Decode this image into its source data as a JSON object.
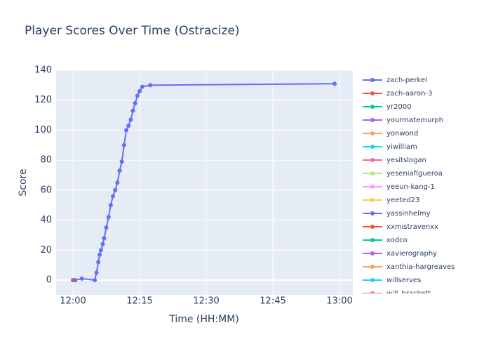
{
  "chart_data": {
    "type": "line",
    "title": "Player Scores Over Time (Ostracize)",
    "x_label": "Time (HH:MM)",
    "y_label": "Score",
    "xlim": [
      -3.8,
      63
    ],
    "ylim": [
      -9.8,
      140
    ],
    "xticks": [
      {
        "value": 0,
        "label": "12:00"
      },
      {
        "value": 15,
        "label": "12:15"
      },
      {
        "value": 30,
        "label": "12:30"
      },
      {
        "value": 45,
        "label": "12:45"
      },
      {
        "value": 60,
        "label": "13:00"
      }
    ],
    "yticks": [
      0,
      20,
      40,
      60,
      80,
      100,
      120,
      140
    ],
    "grid": true,
    "series": [
      {
        "name": "zach-perkel",
        "color": "#636efa",
        "x": [
          0.5,
          2,
          4.9,
          5.3,
          5.7,
          6.0,
          6.3,
          6.7,
          7.0,
          7.5,
          8.0,
          8.5,
          9.0,
          9.5,
          10.0,
          10.5,
          11.0,
          11.5,
          12.0,
          12.5,
          13.0,
          13.5,
          14.0,
          14.5,
          15.0,
          15.6,
          17.4,
          58.9
        ],
        "values": [
          0,
          1,
          0,
          5,
          12,
          17,
          20,
          24,
          28,
          35,
          42,
          50,
          56,
          60,
          65,
          73,
          79,
          90,
          100,
          103,
          107,
          113,
          118,
          123,
          126,
          129,
          130,
          131
        ]
      },
      {
        "name": "zach-aaron-3",
        "color": "#EF553B",
        "x": [
          0
        ],
        "values": [
          0
        ]
      },
      {
        "name": "yr2000",
        "color": "#00cc96",
        "x": [
          0
        ],
        "values": [
          0
        ]
      },
      {
        "name": "yourmatemurph",
        "color": "#ab63fa",
        "x": [
          0
        ],
        "values": [
          0
        ]
      },
      {
        "name": "yonwond",
        "color": "#FFA15A",
        "x": [
          0
        ],
        "values": [
          0
        ]
      },
      {
        "name": "yiwilliam",
        "color": "#19d3f3",
        "x": [
          0
        ],
        "values": [
          0
        ]
      },
      {
        "name": "yesitslogan",
        "color": "#FF6692",
        "x": [
          0
        ],
        "values": [
          0
        ]
      },
      {
        "name": "yeseniafigueroa",
        "color": "#B6E880",
        "x": [
          0
        ],
        "values": [
          0
        ]
      },
      {
        "name": "yeeun-kang-1",
        "color": "#FF97FF",
        "x": [
          0
        ],
        "values": [
          0
        ]
      },
      {
        "name": "yeeted23",
        "color": "#FECB52",
        "x": [
          0
        ],
        "values": [
          0
        ]
      },
      {
        "name": "yassinhelmy",
        "color": "#636efa",
        "x": [
          0
        ],
        "values": [
          0
        ]
      },
      {
        "name": "xxmistravenxx",
        "color": "#EF553B",
        "x": [
          0
        ],
        "values": [
          0
        ]
      },
      {
        "name": "xodco",
        "color": "#00cc96",
        "x": [
          0
        ],
        "values": [
          0
        ]
      },
      {
        "name": "xavierography",
        "color": "#ab63fa",
        "x": [
          0
        ],
        "values": [
          0
        ]
      },
      {
        "name": "xanthia-hargreaves",
        "color": "#FFA15A",
        "x": [
          0
        ],
        "values": [
          0
        ]
      },
      {
        "name": "willserves",
        "color": "#19d3f3",
        "x": [
          0
        ],
        "values": [
          0
        ]
      },
      {
        "name": "will_brackett",
        "color": "#FF6692",
        "x": [
          0
        ],
        "values": [
          0
        ]
      }
    ]
  }
}
